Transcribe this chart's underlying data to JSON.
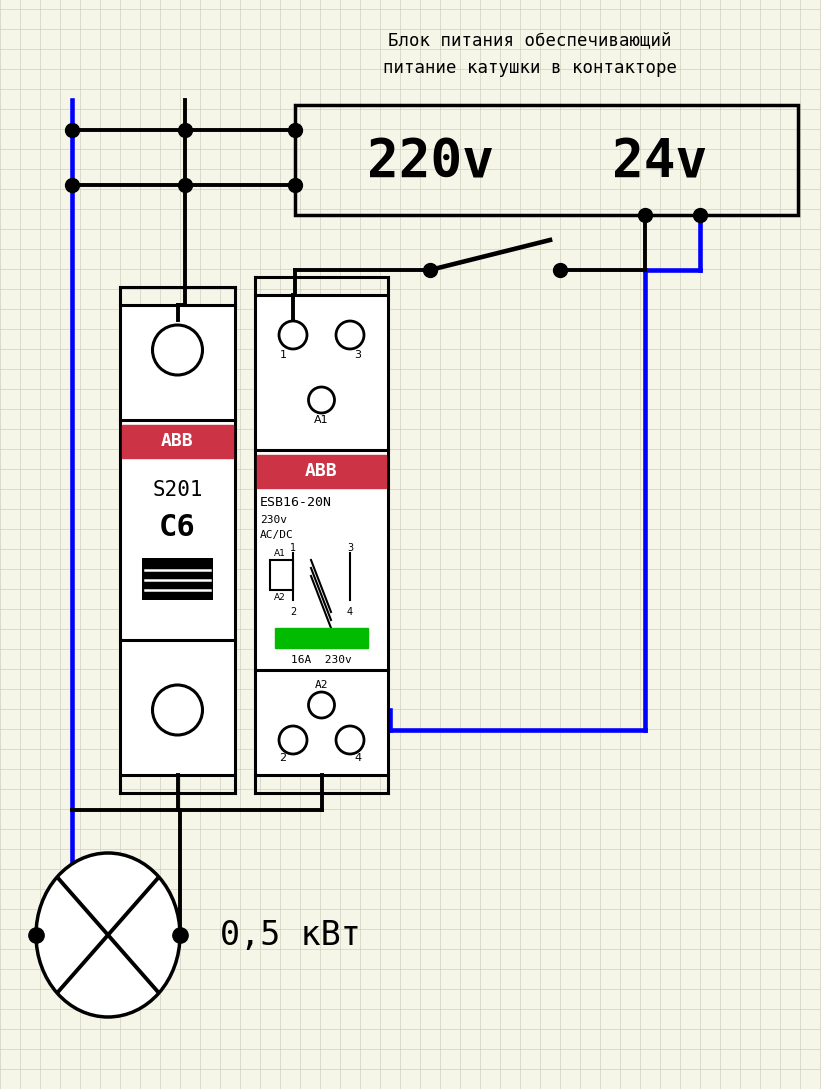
{
  "bg_color": "#f5f5e8",
  "grid_color": "#d0d0c0",
  "title_line1": "Блок питания обеспечивающий",
  "title_line2": "питание катушки в контакторе",
  "voltage_220": "220v",
  "voltage_24": "24v",
  "label_load": "0,5 кВт",
  "abb_color": "#cc3344",
  "abb_text": "ABB",
  "s201_text1": "S201",
  "s201_text2": "C6",
  "esb_text1": "ESB16-20N",
  "esb_text2": "230v",
  "esb_text3": "AC/DC",
  "esb_text4": "16A  230v",
  "esb_text5": "A1",
  "esb_text6": "A2",
  "wire_blue": "#0000ff",
  "wire_black": "#000000",
  "green_indicator": "#00bb00",
  "lw_wire": 2.8,
  "lw_device": 2.2
}
